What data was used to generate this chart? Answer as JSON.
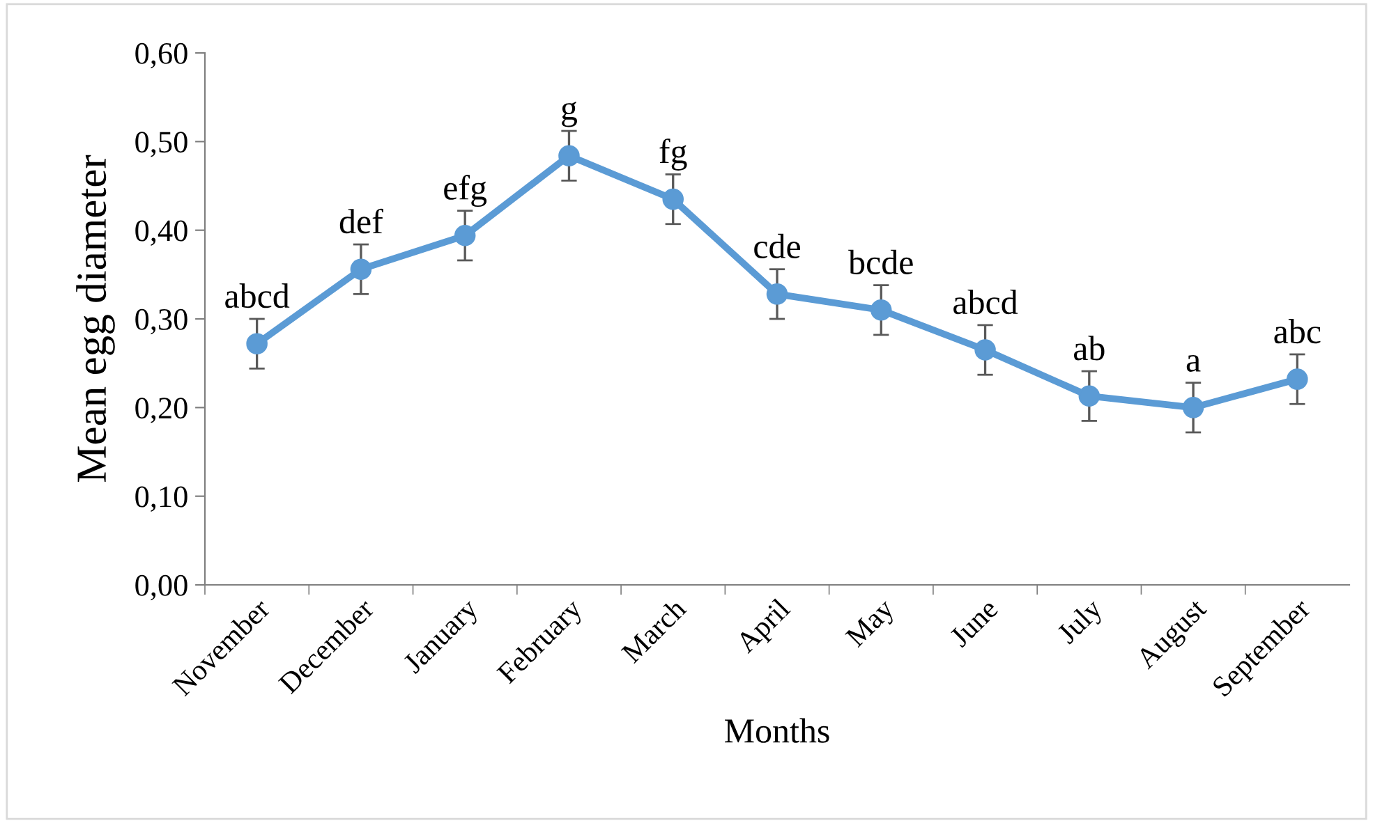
{
  "chart_data": {
    "type": "line",
    "xlabel": "Months",
    "ylabel": "Mean egg diameter",
    "categories": [
      "November",
      "December",
      "January",
      "February",
      "March",
      "April",
      "May",
      "June",
      "July",
      "August",
      "September"
    ],
    "series": [
      {
        "color": "#5b9bd5",
        "values": [
          0.272,
          0.356,
          0.394,
          0.484,
          0.435,
          0.328,
          0.31,
          0.265,
          0.213,
          0.2,
          0.232
        ],
        "errors": [
          0.028,
          0.028,
          0.028,
          0.028,
          0.028,
          0.028,
          0.028,
          0.028,
          0.028,
          0.028,
          0.028
        ]
      }
    ],
    "ylim": [
      0,
      0.6
    ],
    "yticks": [
      {
        "value": 0,
        "label": "0,00"
      },
      {
        "value": 0.1,
        "label": "0,10"
      },
      {
        "value": 0.2,
        "label": "0,20"
      },
      {
        "value": 0.3,
        "label": "0,30"
      },
      {
        "value": 0.4,
        "label": "0,40"
      },
      {
        "value": 0.5,
        "label": "0,50"
      },
      {
        "value": 0.6,
        "label": "0,60"
      }
    ],
    "marker": "circle",
    "line_style": "solid",
    "grid": false,
    "legend": false,
    "annotations": [
      {
        "text": "abcd",
        "x": "November",
        "y": 0.3
      },
      {
        "text": "def",
        "x": "December",
        "y": 0.384
      },
      {
        "text": "efg",
        "x": "January",
        "y": 0.422
      },
      {
        "text": "g",
        "x": "February",
        "y": 0.512
      },
      {
        "text": "fg",
        "x": "March",
        "y": 0.463
      },
      {
        "text": "cde",
        "x": "April",
        "y": 0.356
      },
      {
        "text": "bcde",
        "x": "May",
        "y": 0.338
      },
      {
        "text": "abcd",
        "x": "June",
        "y": 0.293
      },
      {
        "text": "ab",
        "x": "July",
        "y": 0.241
      },
      {
        "text": "a",
        "x": "August",
        "y": 0.228
      },
      {
        "text": "abc",
        "x": "September",
        "y": 0.26
      }
    ]
  }
}
